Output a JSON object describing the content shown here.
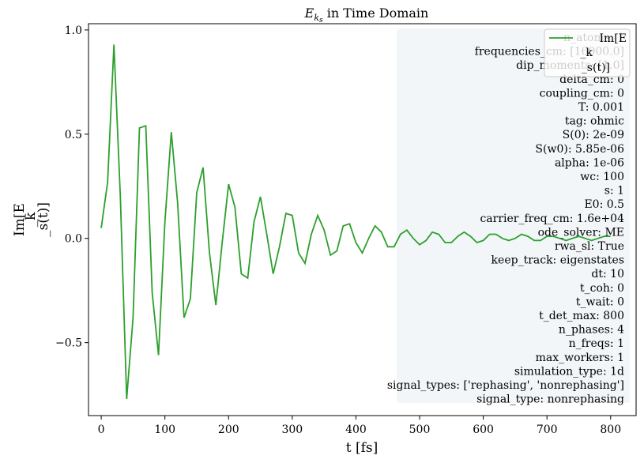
{
  "chart_data": {
    "type": "line",
    "title": "E_{k_s} in Time Domain",
    "title_main": "E",
    "title_sub": "k",
    "title_subsub": "s",
    "title_rest": " in Time Domain",
    "xlabel": "t [fs]",
    "ylabel_lines": [
      "Im[E",
      "_k",
      "_s(t)]"
    ],
    "xlim": [
      -20,
      840
    ],
    "ylim": [
      -0.85,
      1.03
    ],
    "x_ticks": [
      0,
      100,
      200,
      300,
      400,
      500,
      600,
      700,
      800
    ],
    "x_tick_labels": [
      "0",
      "100",
      "200",
      "300",
      "400",
      "500",
      "600",
      "700",
      "800"
    ],
    "y_ticks": [
      -0.5,
      0.0,
      0.5,
      1.0
    ],
    "y_tick_labels": [
      "−0.5",
      "0.0",
      "0.5",
      "1.0"
    ],
    "grid": false,
    "legend_position": "top-right",
    "series": [
      {
        "name_lines": [
          "Im[E",
          "_k",
          "_s(t)]"
        ],
        "color": "#2ca02c",
        "x": [
          0,
          10,
          20,
          30,
          40,
          50,
          60,
          70,
          80,
          90,
          100,
          110,
          120,
          130,
          140,
          150,
          160,
          170,
          180,
          190,
          200,
          210,
          220,
          230,
          240,
          250,
          260,
          270,
          280,
          290,
          300,
          310,
          320,
          330,
          340,
          350,
          360,
          370,
          380,
          390,
          400,
          410,
          420,
          430,
          440,
          450,
          460,
          470,
          480,
          490,
          500,
          510,
          520,
          530,
          540,
          550,
          560,
          570,
          580,
          590,
          600,
          610,
          620,
          630,
          640,
          650,
          660,
          670,
          680,
          690,
          700,
          710,
          720,
          730,
          740,
          750,
          760,
          770,
          780,
          790,
          800
        ],
        "y": [
          0.05,
          0.27,
          0.93,
          0.2,
          -0.77,
          -0.38,
          0.53,
          0.54,
          -0.26,
          -0.56,
          0.08,
          0.51,
          0.17,
          -0.38,
          -0.29,
          0.22,
          0.34,
          -0.07,
          -0.32,
          -0.02,
          0.26,
          0.15,
          -0.17,
          -0.19,
          0.08,
          0.2,
          0.02,
          -0.17,
          -0.04,
          0.12,
          0.11,
          -0.07,
          -0.12,
          0.02,
          0.11,
          0.04,
          -0.08,
          -0.06,
          0.06,
          0.07,
          -0.02,
          -0.07,
          0.0,
          0.06,
          0.03,
          -0.04,
          -0.04,
          0.02,
          0.04,
          0.0,
          -0.03,
          -0.01,
          0.03,
          0.02,
          -0.02,
          -0.02,
          0.01,
          0.03,
          0.01,
          -0.02,
          -0.01,
          0.02,
          0.02,
          0.0,
          -0.01,
          0.0,
          0.02,
          0.01,
          -0.01,
          -0.01,
          0.01,
          0.01,
          0.0,
          -0.01,
          0.0,
          0.01,
          0.0,
          -0.01,
          0.0,
          0.01,
          0.01
        ]
      }
    ]
  },
  "info_box": {
    "lines": [
      "n_atoms: 1",
      "frequencies_cm: [16000.0]",
      "dip_moments: [1.0]",
      "delta_cm: 0",
      "coupling_cm: 0",
      "T: 0.001",
      "tag: ohmic",
      "S(0): 2e-09",
      "S(w0): 5.85e-06",
      "alpha: 1e-06",
      "wc: 100",
      "s: 1",
      "E0: 0.5",
      "carrier_freq_cm: 1.6e+04",
      "ode_solver: ME",
      "rwa_sl: True",
      "keep_track: eigenstates",
      "dt: 10",
      "t_coh: 0",
      "t_wait: 0",
      "t_det_max: 800",
      "n_phases: 4",
      "n_freqs: 1",
      "max_workers: 1",
      "simulation_type: 1d",
      "signal_types: ['rephasing', 'nonrephasing']",
      "signal_type: nonrephasing"
    ],
    "background": "#f0f4f8"
  }
}
